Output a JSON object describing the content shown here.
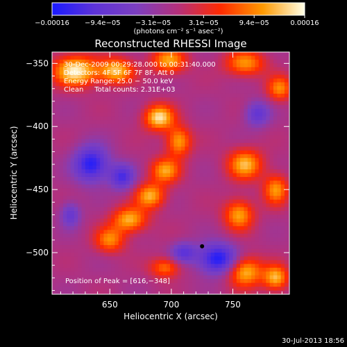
{
  "chart_data": {
    "type": "heatmap",
    "title": "Reconstructed RHESSI Image",
    "xlabel": "Heliocentric X (arcsec)",
    "ylabel": "Heliocentric Y (arcsec)",
    "xlim": [
      603,
      796
    ],
    "ylim": [
      -533,
      -341
    ],
    "xticks": [
      650,
      700,
      750
    ],
    "xtick_labels": [
      "650",
      "700",
      "750"
    ],
    "yticks": [
      -350,
      -400,
      -450,
      -500
    ],
    "ytick_labels": [
      "−350",
      "−400",
      "−450",
      "−500"
    ],
    "colorbar": {
      "tick_labels": [
        "−0.00016",
        "−9.4e−05",
        "−3.1e−05",
        "3.1e−05",
        "9.4e−05",
        "0.00016"
      ],
      "units": "(photons cm⁻² s⁻¹ asec⁻²)",
      "range": [
        -0.00016,
        0.00016
      ],
      "colors": [
        "#1a1aff",
        "#5d33d8",
        "#7c3fc0",
        "#b5307a",
        "#ff2a00",
        "#ff9900",
        "#ffffe8"
      ]
    },
    "annotations": [
      "30-Dec-2009 00:29:28.000 to 00:31:40.000",
      "Detectors: 4F 5F 6F 7F 8F, Att 0",
      "Energy Range: 25.0 − 50.0 keV",
      "Clean     Total counts: 2.31E+03"
    ],
    "peak_label": "Position of Peak = [616,−348]",
    "peak_position": [
      616,
      -348
    ],
    "marker_position": [
      725,
      -495
    ],
    "grid": false,
    "blobs": [
      {
        "x": 622,
        "y": -356,
        "intensity": 1.0,
        "sx": 18,
        "sy": 12
      },
      {
        "x": 655,
        "y": -356,
        "intensity": 0.85,
        "sx": 14,
        "sy": 10
      },
      {
        "x": 698,
        "y": -348,
        "intensity": 0.75,
        "sx": 14,
        "sy": 10
      },
      {
        "x": 760,
        "y": -350,
        "intensity": 0.7,
        "sx": 16,
        "sy": 10
      },
      {
        "x": 788,
        "y": -370,
        "intensity": 0.65,
        "sx": 10,
        "sy": 10
      },
      {
        "x": 690,
        "y": -393,
        "intensity": 0.95,
        "sx": 12,
        "sy": 10
      },
      {
        "x": 706,
        "y": -412,
        "intensity": 0.75,
        "sx": 10,
        "sy": 12
      },
      {
        "x": 695,
        "y": -435,
        "intensity": 0.72,
        "sx": 12,
        "sy": 10
      },
      {
        "x": 683,
        "y": -455,
        "intensity": 0.78,
        "sx": 12,
        "sy": 10
      },
      {
        "x": 666,
        "y": -474,
        "intensity": 0.8,
        "sx": 14,
        "sy": 10
      },
      {
        "x": 650,
        "y": -490,
        "intensity": 0.65,
        "sx": 12,
        "sy": 10
      },
      {
        "x": 760,
        "y": -430,
        "intensity": 0.8,
        "sx": 14,
        "sy": 12
      },
      {
        "x": 755,
        "y": -470,
        "intensity": 0.75,
        "sx": 12,
        "sy": 12
      },
      {
        "x": 785,
        "y": -450,
        "intensity": 0.7,
        "sx": 10,
        "sy": 12
      },
      {
        "x": 760,
        "y": -515,
        "intensity": 0.85,
        "sx": 14,
        "sy": 12
      },
      {
        "x": 785,
        "y": -520,
        "intensity": 0.8,
        "sx": 10,
        "sy": 10
      },
      {
        "x": 695,
        "y": -512,
        "intensity": 0.6,
        "sx": 12,
        "sy": 8
      },
      {
        "x": 635,
        "y": -430,
        "intensity": -0.9,
        "sx": 14,
        "sy": 14
      },
      {
        "x": 660,
        "y": -440,
        "intensity": -0.7,
        "sx": 10,
        "sy": 10
      },
      {
        "x": 738,
        "y": -505,
        "intensity": -0.95,
        "sx": 16,
        "sy": 12
      },
      {
        "x": 710,
        "y": -500,
        "intensity": -0.6,
        "sx": 10,
        "sy": 8
      },
      {
        "x": 618,
        "y": -470,
        "intensity": -0.5,
        "sx": 8,
        "sy": 10
      },
      {
        "x": 770,
        "y": -390,
        "intensity": -0.55,
        "sx": 10,
        "sy": 10
      }
    ]
  },
  "footer": {
    "timestamp": "30-Jul-2013 18:56"
  }
}
